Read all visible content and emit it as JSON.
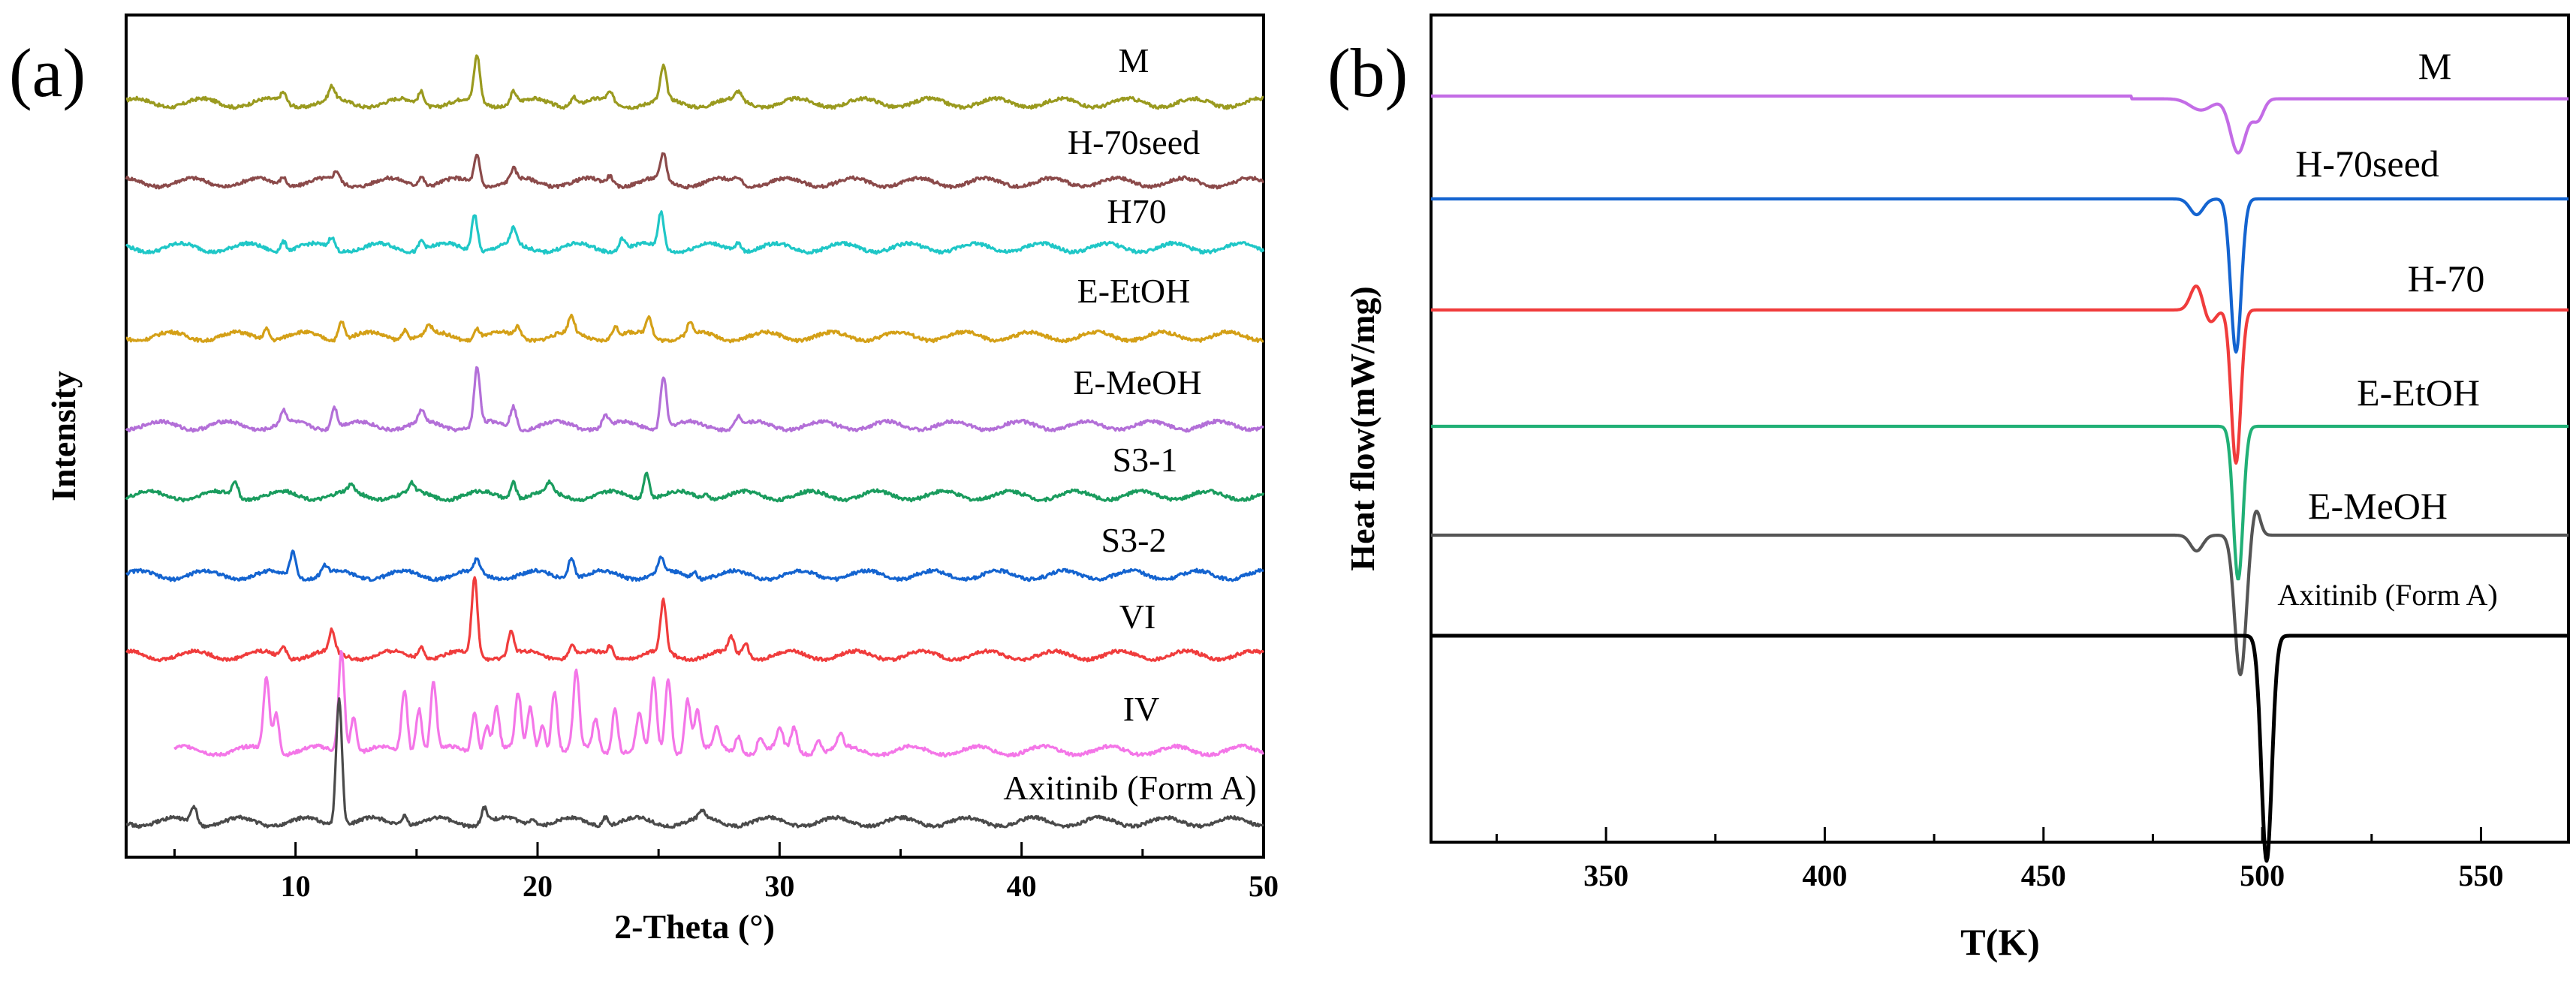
{
  "chart_data": [
    {
      "panel_label": "(a)",
      "type": "line",
      "subtype": "stacked-xrd-patterns",
      "xlabel": "2-Theta (°)",
      "ylabel": "Intensity",
      "xlim": [
        3,
        50
      ],
      "xticks": [
        10,
        20,
        30,
        40,
        50
      ],
      "series": [
        {
          "name": "M",
          "color": "#9a9a1f",
          "baseline": 0.5,
          "start": 3,
          "peaks": [
            [
              9.5,
              0.35
            ],
            [
              11.5,
              0.45
            ],
            [
              15.2,
              0.45
            ],
            [
              17.5,
              1.6
            ],
            [
              19.0,
              0.45
            ],
            [
              21.5,
              0.3
            ],
            [
              23.0,
              0.3
            ],
            [
              25.2,
              1.15
            ],
            [
              28.3,
              0.3
            ]
          ]
        },
        {
          "name": "H-70seed",
          "color": "#8b4a4a",
          "baseline": 0.4,
          "start": 3,
          "peaks": [
            [
              9.5,
              0.3
            ],
            [
              11.7,
              0.35
            ],
            [
              15.2,
              0.35
            ],
            [
              17.5,
              1.0
            ],
            [
              19.0,
              0.4
            ],
            [
              23.0,
              0.3
            ],
            [
              25.2,
              0.95
            ],
            [
              28.3,
              0.2
            ]
          ]
        },
        {
          "name": "H70",
          "color": "#1fc7c7",
          "baseline": 0.4,
          "start": 3,
          "peaks": [
            [
              9.5,
              0.35
            ],
            [
              11.5,
              0.4
            ],
            [
              15.2,
              0.35
            ],
            [
              17.4,
              1.3
            ],
            [
              19.0,
              0.55
            ],
            [
              23.5,
              0.4
            ],
            [
              25.1,
              1.25
            ],
            [
              28.3,
              0.3
            ]
          ]
        },
        {
          "name": "E-EtOH",
          "color": "#d4a017",
          "baseline": 0.45,
          "start": 3,
          "peaks": [
            [
              8.8,
              0.4
            ],
            [
              11.9,
              0.65
            ],
            [
              14.5,
              0.35
            ],
            [
              15.5,
              0.3
            ],
            [
              17.5,
              0.35
            ],
            [
              19.2,
              0.35
            ],
            [
              21.4,
              0.6
            ],
            [
              23.2,
              0.35
            ],
            [
              24.6,
              0.7
            ],
            [
              26.3,
              0.4
            ]
          ]
        },
        {
          "name": "E-MeOH",
          "color": "#b36fd8",
          "baseline": 0.4,
          "start": 3,
          "peaks": [
            [
              9.5,
              0.45
            ],
            [
              11.6,
              0.75
            ],
            [
              15.2,
              0.4
            ],
            [
              17.5,
              2.0
            ],
            [
              19.0,
              0.75
            ],
            [
              22.8,
              0.4
            ],
            [
              25.2,
              1.85
            ],
            [
              28.3,
              0.35
            ]
          ]
        },
        {
          "name": "S3-1",
          "color": "#1a9c5e",
          "baseline": 0.35,
          "start": 3,
          "peaks": [
            [
              7.5,
              0.55
            ],
            [
              12.3,
              0.25
            ],
            [
              14.8,
              0.3
            ],
            [
              19.0,
              0.6
            ],
            [
              20.5,
              0.35
            ],
            [
              24.5,
              0.95
            ],
            [
              27.0,
              0.15
            ]
          ]
        },
        {
          "name": "S3-2",
          "color": "#1464d0",
          "baseline": 0.5,
          "start": 3,
          "peaks": [
            [
              9.9,
              0.9
            ],
            [
              11.2,
              0.3
            ],
            [
              17.5,
              0.45
            ],
            [
              21.4,
              0.75
            ],
            [
              25.1,
              0.5
            ],
            [
              26.5,
              0.2
            ]
          ]
        },
        {
          "name": "VI",
          "color": "#f03c3c",
          "baseline": 0.45,
          "start": 3,
          "peaks": [
            [
              9.5,
              0.4
            ],
            [
              11.5,
              0.75
            ],
            [
              15.2,
              0.45
            ],
            [
              17.4,
              2.7
            ],
            [
              18.9,
              0.8
            ],
            [
              21.4,
              0.4
            ],
            [
              23.0,
              0.35
            ],
            [
              25.2,
              1.8
            ],
            [
              28.0,
              0.55
            ],
            [
              28.6,
              0.5
            ]
          ]
        },
        {
          "name": "IV",
          "color": "#f476e8",
          "baseline": 0.55,
          "start": 5,
          "peaks": [
            [
              8.8,
              2.6
            ],
            [
              9.2,
              1.4
            ],
            [
              11.9,
              3.6
            ],
            [
              12.4,
              1.3
            ],
            [
              14.5,
              2.2
            ],
            [
              15.1,
              1.6
            ],
            [
              15.7,
              2.4
            ],
            [
              17.4,
              1.4
            ],
            [
              17.9,
              1.0
            ],
            [
              18.3,
              1.6
            ],
            [
              19.2,
              1.9
            ],
            [
              19.7,
              1.5
            ],
            [
              20.2,
              1.0
            ],
            [
              20.7,
              2.2
            ],
            [
              21.6,
              2.7
            ],
            [
              22.4,
              1.1
            ],
            [
              23.2,
              1.6
            ],
            [
              24.2,
              1.2
            ],
            [
              24.8,
              2.4
            ],
            [
              25.4,
              2.6
            ],
            [
              26.2,
              1.9
            ],
            [
              26.6,
              1.4
            ],
            [
              27.4,
              0.7
            ],
            [
              28.3,
              0.6
            ],
            [
              29.2,
              0.5
            ],
            [
              30.0,
              0.7
            ],
            [
              30.6,
              0.8
            ],
            [
              31.6,
              0.5
            ],
            [
              32.5,
              0.5
            ]
          ]
        },
        {
          "name": "Axitinib (Form A)",
          "color": "#4a4a4a",
          "baseline": 0.3,
          "start": 3,
          "peaks": [
            [
              5.8,
              0.6
            ],
            [
              11.8,
              4.5
            ],
            [
              14.5,
              0.35
            ],
            [
              17.8,
              0.55
            ],
            [
              19.8,
              0.2
            ],
            [
              22.8,
              0.3
            ],
            [
              26.8,
              0.25
            ]
          ]
        }
      ]
    },
    {
      "panel_label": "(b)",
      "type": "line",
      "subtype": "stacked-dsc-curves",
      "xlabel": "T(K)",
      "ylabel": "Heat flow(mW/mg)",
      "xlim": [
        310,
        570
      ],
      "xticks": [
        350,
        400,
        450,
        500,
        550
      ],
      "series": [
        {
          "name": "M",
          "color": "#c36ce6",
          "dips": [
            [
              486,
              0.25,
              2.5
            ],
            [
              494.5,
              1.2,
              1.8
            ],
            [
              499,
              0.45,
              1.3
            ]
          ]
        },
        {
          "name": "H-70seed",
          "color": "#1464d0",
          "dips": [
            [
              485,
              0.35,
              1.5
            ],
            [
              494,
              3.4,
              1.2
            ]
          ]
        },
        {
          "name": "H-70",
          "color": "#f03c3c",
          "dips": [
            [
              485,
              -0.55,
              1.4
            ],
            [
              488,
              0.3,
              1.3
            ],
            [
              494,
              3.4,
              1.1
            ]
          ]
        },
        {
          "name": "E-EtOH",
          "color": "#21b076",
          "dips": [
            [
              494.5,
              3.4,
              1.1
            ]
          ]
        },
        {
          "name": "E-MeOH",
          "color": "#555555",
          "dips": [
            [
              485,
              0.35,
              1.4
            ],
            [
              495,
              3.1,
              1.3
            ],
            [
              498.5,
              -0.6,
              1.0
            ]
          ]
        },
        {
          "name": "Axitinib (Form A)",
          "color": "#000000",
          "dips": [
            [
              501,
              5.0,
              1.2
            ]
          ]
        }
      ]
    }
  ]
}
